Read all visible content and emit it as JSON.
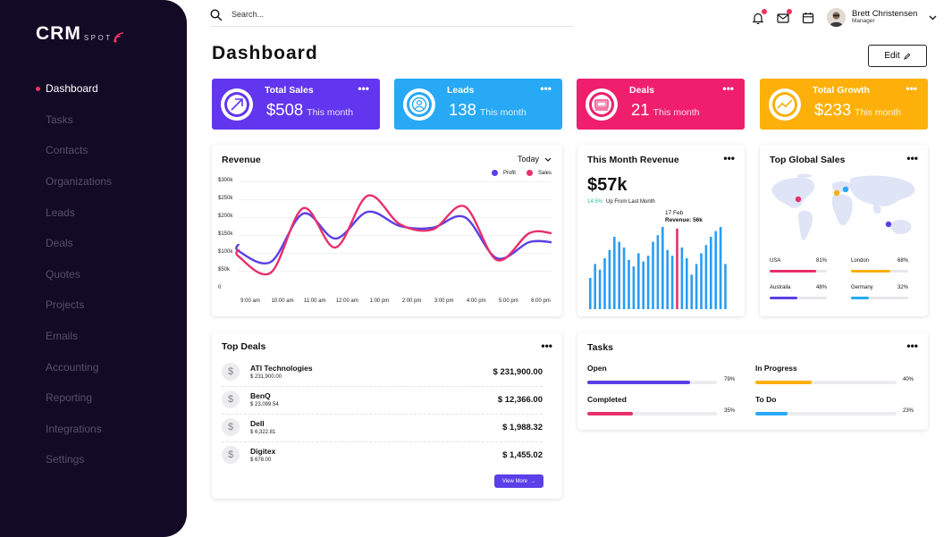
{
  "brand": {
    "name": "CRM",
    "sub": "SPOT"
  },
  "sidebar": {
    "items": [
      {
        "label": "Dashboard"
      },
      {
        "label": "Tasks"
      },
      {
        "label": "Contacts"
      },
      {
        "label": "Organizations"
      },
      {
        "label": "Leads"
      },
      {
        "label": "Deals"
      },
      {
        "label": "Quotes"
      },
      {
        "label": "Projects"
      },
      {
        "label": "Emails"
      },
      {
        "label": "Accounting"
      },
      {
        "label": "Reporting"
      },
      {
        "label": "Integrations"
      },
      {
        "label": "Settings"
      }
    ],
    "active_index": 0
  },
  "topbar": {
    "search_placeholder": "Search...",
    "user": {
      "name": "Brett Christensen",
      "role": "Manager"
    }
  },
  "page": {
    "title": "Dashboard",
    "edit_label": "Edit"
  },
  "stats": [
    {
      "title": "Total Sales",
      "value": "$508",
      "sub": "This month",
      "color": "#6236ee",
      "icon": "arrow-up-right-icon"
    },
    {
      "title": "Leads",
      "value": "138",
      "sub": "This month",
      "color": "#27a9f5",
      "icon": "user-circle-icon"
    },
    {
      "title": "Deals",
      "value": "21",
      "sub": "This month",
      "color": "#ef1f6d",
      "icon": "money-icon"
    },
    {
      "title": "Total Growth",
      "value": "$233",
      "sub": "This month",
      "color": "#fcb009",
      "icon": "growth-chart-icon"
    }
  ],
  "revenue": {
    "title": "Revenue",
    "range": "Today",
    "chart_data": {
      "type": "line",
      "title": "Revenue",
      "x": [
        "9:00 am",
        "10:00 am",
        "11:00 am",
        "12:00 am",
        "1:00 pm",
        "2:00 pm",
        "3:00 pm",
        "4:00 pm",
        "5:00 pm",
        "6:00 pm"
      ],
      "y_ticks": [
        "0",
        "$50k",
        "$100k",
        "$150k",
        "$200k",
        "$250k",
        "$300k"
      ],
      "ylim": [
        0,
        300
      ],
      "grid": true,
      "legend_position": "top-right",
      "series": [
        {
          "name": "Profit",
          "color": "#5a3fe8",
          "values": [
            105,
            75,
            210,
            140,
            215,
            175,
            170,
            200,
            85,
            130
          ]
        },
        {
          "name": "Sales",
          "color": "#e8306b",
          "values": [
            90,
            45,
            225,
            115,
            260,
            180,
            165,
            230,
            80,
            155
          ]
        }
      ]
    }
  },
  "month_revenue": {
    "title": "This Month Revenue",
    "value": "$57k",
    "change_pct": "14.5%",
    "change_text": "Up From Last Month",
    "tooltip_date": "17 Feb",
    "tooltip_value": "Revenue: 56k",
    "chart_data": {
      "type": "bar",
      "highlight_index": 18,
      "colors": {
        "bar": "#2a9df4",
        "highlight": "#e8306b"
      },
      "values": [
        38,
        55,
        48,
        62,
        72,
        88,
        82,
        75,
        60,
        52,
        68,
        58,
        65,
        82,
        90,
        100,
        72,
        65,
        98,
        75,
        62,
        42,
        55,
        68,
        78,
        88,
        95,
        100,
        55
      ]
    }
  },
  "global_sales": {
    "title": "Top Global Sales",
    "regions": [
      {
        "name": "USA",
        "pct": "81%",
        "value": 81,
        "color": "#e8306b"
      },
      {
        "name": "London",
        "pct": "68%",
        "value": 68,
        "color": "#fcb009"
      },
      {
        "name": "Australia",
        "pct": "48%",
        "value": 48,
        "color": "#5a3fe8"
      },
      {
        "name": "Germany",
        "pct": "32%",
        "value": 32,
        "color": "#27a9f5"
      }
    ]
  },
  "top_deals": {
    "title": "Top Deals",
    "view_more": "View More",
    "items": [
      {
        "name": "ATI Technologies",
        "sub": "$ 231,900.00",
        "amount": "$ 231,900.00"
      },
      {
        "name": "BenQ",
        "sub": "$ 23,099.54",
        "amount": "$ 12,366.00"
      },
      {
        "name": "Dell",
        "sub": "$ 6,322.81",
        "amount": "$ 1,988.32"
      },
      {
        "name": "Digitex",
        "sub": "$ 678.00",
        "amount": "$ 1,455.02"
      }
    ]
  },
  "tasks": {
    "title": "Tasks",
    "items": [
      {
        "label": "Open",
        "pct": "79%",
        "value": 79,
        "color": "#5a3fe8"
      },
      {
        "label": "In Progress",
        "pct": "40%",
        "value": 40,
        "color": "#fcb009"
      },
      {
        "label": "Completed",
        "pct": "35%",
        "value": 35,
        "color": "#e8306b"
      },
      {
        "label": "To Do",
        "pct": "23%",
        "value": 23,
        "color": "#27a9f5"
      }
    ]
  }
}
